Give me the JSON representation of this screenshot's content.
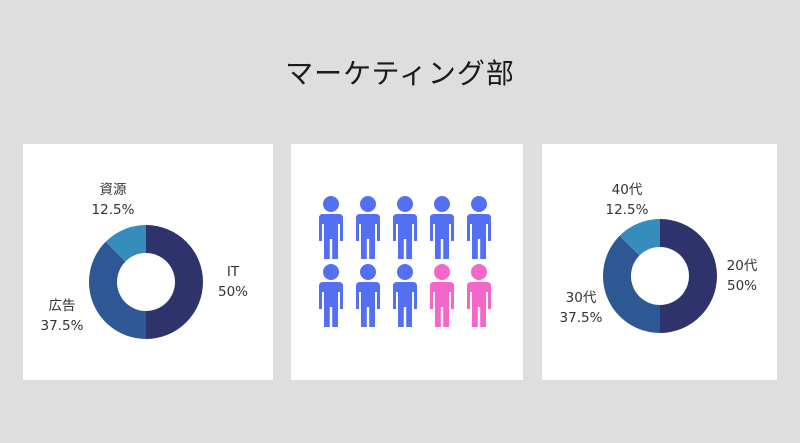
{
  "title": "マーケティング部",
  "colors": {
    "navy": "#2e336b",
    "steel": "#2e5893",
    "teal": "#368dbb",
    "person_blue": "#5470f2",
    "person_pink": "#f566cb",
    "panel": "#ffffff",
    "background": "#dedede"
  },
  "chart_data": [
    {
      "type": "pie",
      "categories": [
        "IT",
        "広告",
        "資源"
      ],
      "values": [
        50,
        37.5,
        12.5
      ],
      "value_labels": [
        "50%",
        "37.5%",
        "12.5%"
      ]
    },
    {
      "type": "pictogram",
      "categories": [
        "blue",
        "pink"
      ],
      "values": [
        8,
        2
      ],
      "icon": "person-icon"
    },
    {
      "type": "pie",
      "categories": [
        "20代",
        "30代",
        "40代"
      ],
      "values": [
        50,
        37.5,
        12.5
      ],
      "value_labels": [
        "50%",
        "37.5%",
        "12.5%"
      ]
    }
  ]
}
